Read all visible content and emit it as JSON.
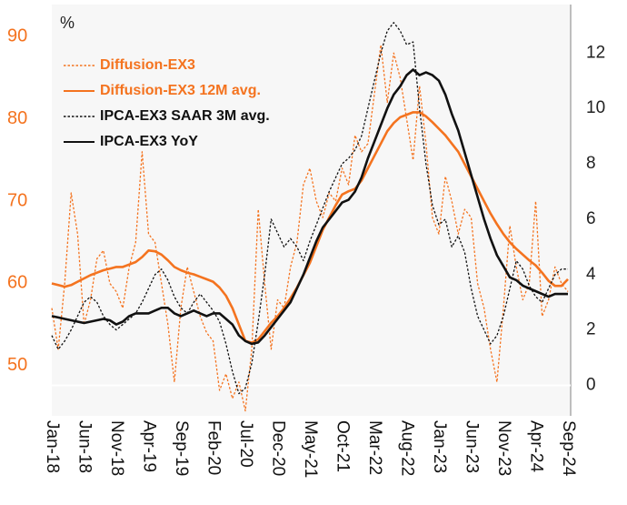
{
  "chart_data": {
    "type": "line",
    "y_label": "%",
    "categories": [
      "Jan-18",
      null,
      null,
      null,
      null,
      "Jun-18",
      null,
      null,
      null,
      null,
      "Nov-18",
      null,
      null,
      null,
      null,
      "Apr-19",
      null,
      null,
      null,
      null,
      "Sep-19",
      null,
      null,
      null,
      null,
      "Feb-20",
      null,
      null,
      null,
      null,
      "Jul-20",
      null,
      null,
      null,
      null,
      "Dec-20",
      null,
      null,
      null,
      null,
      "May-21",
      null,
      null,
      null,
      null,
      "Oct-21",
      null,
      null,
      null,
      null,
      "Mar-22",
      null,
      null,
      null,
      null,
      "Aug-22",
      null,
      null,
      null,
      null,
      "Jan-23",
      null,
      null,
      null,
      null,
      "Jun-23",
      null,
      null,
      null,
      null,
      "Nov-23",
      null,
      null,
      null,
      null,
      "Apr-24",
      null,
      null,
      null,
      null,
      "Sep-24"
    ],
    "series": [
      {
        "name": "Diffusion-EX3",
        "color": "#f4731f",
        "style": "dotted",
        "axis": "y",
        "values": [
          57,
          52,
          60,
          71,
          66,
          55,
          58,
          63,
          64,
          60,
          59,
          57,
          62,
          65,
          76,
          66,
          65,
          60,
          55,
          48,
          57,
          62,
          59,
          56,
          54,
          53,
          47,
          49,
          46,
          48,
          44.5,
          52,
          69,
          60,
          52,
          58,
          57,
          62,
          65,
          72,
          74,
          70,
          68,
          71,
          70,
          74,
          72,
          78,
          76,
          77,
          83,
          89,
          82,
          88,
          85,
          80,
          75,
          84,
          77,
          68,
          66,
          73,
          70,
          66,
          69,
          68,
          60,
          57,
          52,
          48,
          57,
          67,
          62,
          58,
          60,
          70,
          56,
          58,
          62,
          60,
          59
        ]
      },
      {
        "name": "Diffusion-EX3 12M avg.",
        "color": "#f4731f",
        "style": "solid",
        "axis": "y",
        "values": [
          60,
          59.8,
          59.6,
          59.8,
          60.2,
          60.6,
          61,
          61.3,
          61.6,
          61.8,
          62,
          62,
          62.3,
          62.6,
          63.2,
          64,
          63.9,
          63.5,
          62.8,
          62,
          61.6,
          61.3,
          61.1,
          60.8,
          60.5,
          60.2,
          59.5,
          58.5,
          57,
          55,
          53,
          52.8,
          53.2,
          54.2,
          55.2,
          56,
          57,
          58.2,
          59.5,
          61,
          62.5,
          64.5,
          66.5,
          68,
          69.5,
          70.8,
          71.2,
          71.5,
          72.5,
          74,
          75.5,
          77,
          78.5,
          79.5,
          80.2,
          80.5,
          80.8,
          80.8,
          80.3,
          79.6,
          78.8,
          78,
          77,
          76,
          74.5,
          73,
          71.5,
          70,
          68.5,
          67.2,
          66,
          65,
          64.2,
          63.5,
          62.8,
          62.2,
          61.3,
          60.3,
          59.7,
          59.7,
          60.5
        ]
      },
      {
        "name": "IPCA-EX3 SAAR 3M avg.",
        "color": "#111111",
        "style": "dotted",
        "axis": "y2",
        "values": [
          1.8,
          1.3,
          1.6,
          2.0,
          2.5,
          3.0,
          3.2,
          3.0,
          2.5,
          2.2,
          2.0,
          2.2,
          2.4,
          2.6,
          3.0,
          3.5,
          4.0,
          4.2,
          3.8,
          3.2,
          2.8,
          2.6,
          3.0,
          3.3,
          3.0,
          2.7,
          2.3,
          1.5,
          0.5,
          -0.3,
          -0.1,
          0.8,
          2.3,
          4.0,
          6.0,
          5.5,
          5.0,
          5.3,
          5.0,
          4.5,
          5.2,
          5.8,
          6.4,
          7.0,
          7.5,
          8.0,
          8.2,
          8.5,
          9.0,
          10.0,
          11.0,
          12.0,
          12.8,
          13.1,
          12.8,
          12.3,
          12.4,
          10.0,
          8.0,
          6.5,
          5.8,
          6.0,
          5.0,
          5.4,
          4.8,
          3.5,
          2.5,
          2.0,
          1.5,
          1.8,
          2.5,
          3.5,
          4.5,
          4.2,
          3.6,
          3.2,
          3.0,
          3.5,
          4.0,
          4.2,
          4.2
        ]
      },
      {
        "name": "IPCA-EX3 YoY",
        "color": "#111111",
        "style": "solid",
        "axis": "y2",
        "values": [
          2.5,
          2.45,
          2.4,
          2.35,
          2.3,
          2.25,
          2.3,
          2.35,
          2.4,
          2.35,
          2.2,
          2.3,
          2.5,
          2.6,
          2.6,
          2.6,
          2.7,
          2.8,
          2.8,
          2.6,
          2.5,
          2.6,
          2.7,
          2.6,
          2.5,
          2.6,
          2.6,
          2.4,
          2.2,
          1.8,
          1.6,
          1.5,
          1.55,
          1.8,
          2.1,
          2.4,
          2.7,
          3.0,
          3.5,
          4.0,
          4.6,
          5.2,
          5.7,
          6.0,
          6.3,
          6.6,
          6.7,
          7.0,
          7.5,
          8.2,
          8.8,
          9.4,
          10.0,
          10.5,
          10.8,
          11.2,
          11.4,
          11.2,
          11.3,
          11.2,
          11.0,
          10.5,
          9.8,
          9.2,
          8.4,
          7.6,
          6.8,
          6.0,
          5.3,
          4.7,
          4.3,
          3.9,
          3.8,
          3.6,
          3.5,
          3.4,
          3.3,
          3.2,
          3.3,
          3.3,
          3.3
        ]
      }
    ],
    "ylim": [
      43.9,
      93.9
    ],
    "yticks": [
      50,
      60,
      70,
      80,
      90
    ],
    "ytick_color": "#f4731f",
    "y2lim": [
      -1.1,
      13.75
    ],
    "y2ticks": [
      0,
      2,
      4,
      6,
      8,
      10,
      12
    ],
    "y2tick_color": "#222222",
    "legend": "upper left"
  }
}
